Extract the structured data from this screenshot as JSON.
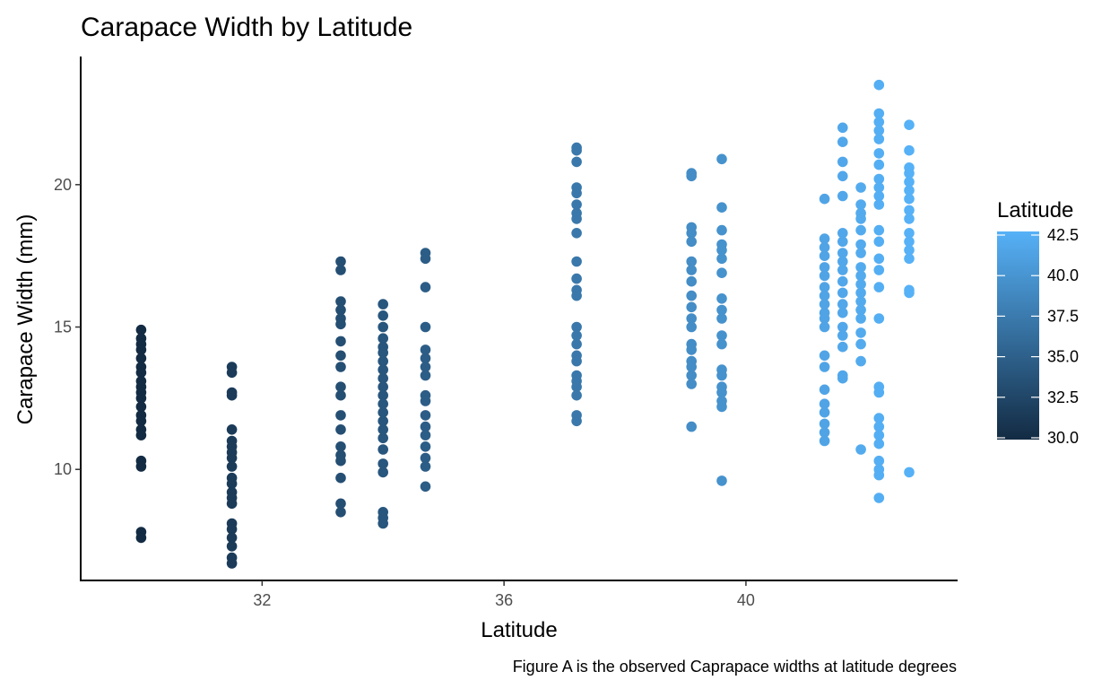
{
  "chart_data": {
    "type": "scatter",
    "title": "Carapace Width by Latitude",
    "xlabel": "Latitude",
    "ylabel": "Carapace Width (mm)",
    "caption": "Figure A is the observed Caprapace widths at latitude degrees",
    "xlim": [
      29.0,
      43.5
    ],
    "ylim": [
      6.1,
      24.5
    ],
    "x_ticks": [
      32,
      36,
      40
    ],
    "y_ticks": [
      10,
      15,
      20
    ],
    "grid": false,
    "color_scale": {
      "title": "Latitude",
      "range": [
        30.0,
        42.5
      ],
      "ticks": [
        "30.0",
        "32.5",
        "35.0",
        "37.5",
        "40.0",
        "42.5"
      ],
      "low_color": "#132B43",
      "high_color": "#56B1F7"
    },
    "groups": [
      {
        "x": 30.0,
        "y": [
          14.9,
          14.6,
          14.4,
          14.2,
          13.9,
          13.6,
          13.4,
          13.1,
          12.9,
          12.7,
          12.5,
          12.2,
          11.9,
          11.7,
          11.4,
          11.2,
          10.3,
          10.1,
          7.8,
          7.6
        ]
      },
      {
        "x": 31.5,
        "y": [
          13.6,
          13.4,
          12.7,
          12.6,
          11.4,
          11.0,
          10.8,
          10.6,
          10.4,
          10.1,
          9.7,
          9.5,
          9.2,
          9.0,
          8.8,
          8.1,
          7.9,
          7.6,
          7.3,
          6.9,
          6.7
        ]
      },
      {
        "x": 33.3,
        "y": [
          17.3,
          17.0,
          15.9,
          15.6,
          15.3,
          15.1,
          14.5,
          14.0,
          13.6,
          12.9,
          12.6,
          11.9,
          11.4,
          10.8,
          10.5,
          10.3,
          9.7,
          8.8,
          8.5
        ]
      },
      {
        "x": 34.0,
        "y": [
          15.8,
          15.4,
          15.0,
          14.6,
          14.3,
          14.1,
          13.8,
          13.5,
          13.2,
          12.9,
          12.6,
          12.3,
          12.0,
          11.7,
          11.4,
          11.1,
          10.7,
          10.2,
          9.9,
          8.5,
          8.3,
          8.1
        ]
      },
      {
        "x": 34.7,
        "y": [
          17.6,
          17.4,
          16.4,
          15.0,
          14.2,
          13.9,
          13.6,
          13.3,
          12.6,
          12.4,
          11.9,
          11.5,
          11.2,
          10.8,
          10.4,
          10.1,
          9.4
        ]
      },
      {
        "x": 37.2,
        "y": [
          21.3,
          21.2,
          20.8,
          19.9,
          19.7,
          19.3,
          19.0,
          18.8,
          18.3,
          17.3,
          16.7,
          16.3,
          16.1,
          15.0,
          14.7,
          14.4,
          14.0,
          13.8,
          13.3,
          13.1,
          12.9,
          12.6,
          11.9,
          11.7
        ]
      },
      {
        "x": 39.1,
        "y": [
          20.4,
          20.3,
          18.5,
          18.3,
          18.0,
          17.3,
          17.0,
          16.6,
          16.1,
          15.7,
          15.3,
          15.0,
          14.4,
          14.2,
          13.8,
          13.6,
          13.3,
          13.0,
          11.5
        ]
      },
      {
        "x": 39.6,
        "y": [
          20.9,
          19.2,
          18.4,
          17.9,
          17.7,
          17.4,
          16.9,
          16.0,
          15.6,
          15.3,
          14.7,
          14.4,
          13.5,
          13.3,
          12.9,
          12.7,
          12.4,
          12.2,
          9.6
        ]
      },
      {
        "x": 41.3,
        "y": [
          19.5,
          18.1,
          17.8,
          17.5,
          17.1,
          16.8,
          16.4,
          16.1,
          15.8,
          15.5,
          15.3,
          15.0,
          14.0,
          13.6,
          12.8,
          12.3,
          12.0,
          11.6,
          11.3,
          11.0
        ]
      },
      {
        "x": 41.6,
        "y": [
          22.0,
          21.5,
          20.8,
          20.3,
          19.6,
          18.3,
          18.0,
          17.6,
          17.3,
          17.0,
          16.6,
          16.2,
          15.8,
          15.5,
          15.0,
          14.7,
          14.3,
          13.3,
          13.2
        ]
      },
      {
        "x": 41.9,
        "y": [
          19.9,
          19.3,
          19.0,
          18.8,
          18.4,
          17.9,
          17.6,
          17.1,
          16.8,
          16.5,
          16.2,
          15.9,
          15.6,
          15.3,
          14.8,
          14.4,
          13.8,
          10.7
        ]
      },
      {
        "x": 42.2,
        "y": [
          23.5,
          22.5,
          22.2,
          21.9,
          21.6,
          21.1,
          20.7,
          20.2,
          19.9,
          19.6,
          19.3,
          18.4,
          18.0,
          17.4,
          17.0,
          16.4,
          15.3,
          12.9,
          12.7,
          11.8,
          11.5,
          11.2,
          10.9,
          10.3,
          10.0,
          9.8,
          9.0
        ]
      },
      {
        "x": 42.7,
        "y": [
          22.1,
          21.2,
          20.6,
          20.4,
          20.1,
          19.8,
          19.5,
          19.1,
          18.8,
          18.3,
          18.0,
          17.7,
          17.4,
          16.3,
          16.2,
          9.9
        ]
      }
    ]
  }
}
